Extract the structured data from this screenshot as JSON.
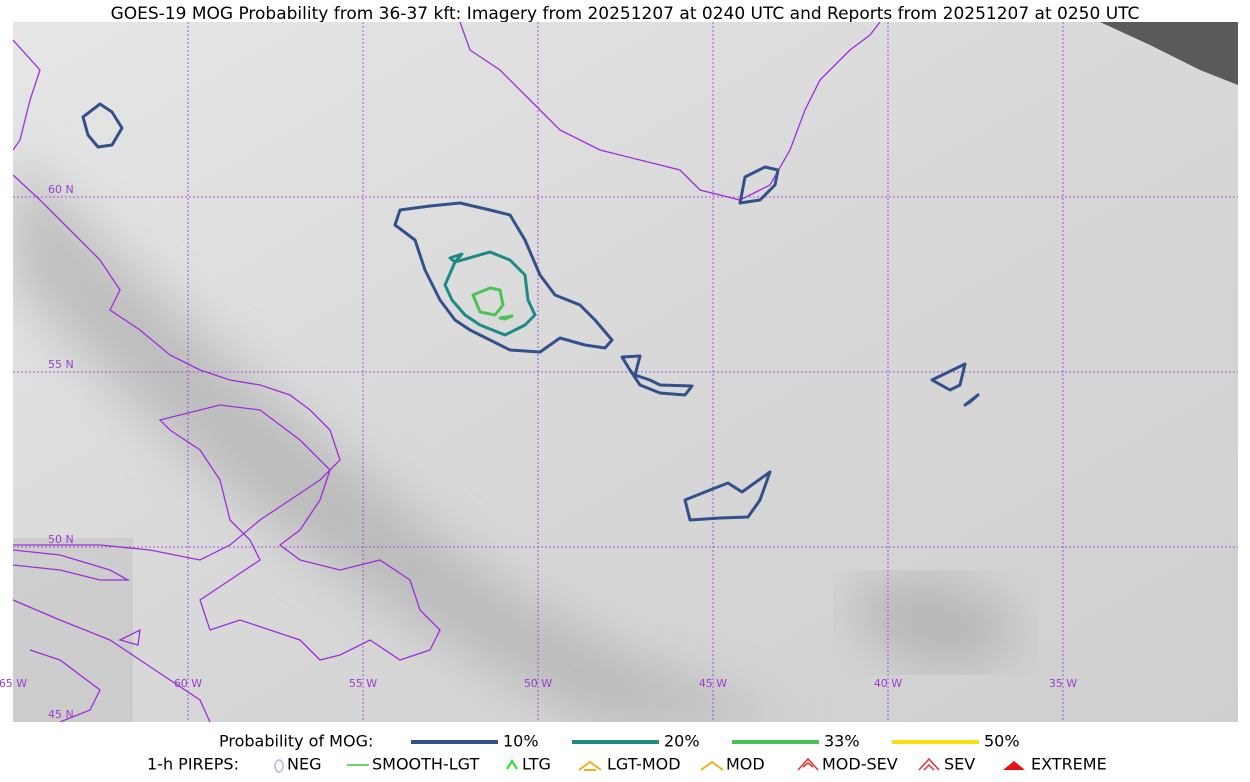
{
  "title": "GOES-19 MOG Probability from 36-37 kft: Imagery from 20251207 at 0240 UTC and Reports from 20251207 at 0250 UTC",
  "map": {
    "lat_labels": [
      "60 N",
      "55 N",
      "50 N",
      "45 N"
    ],
    "lon_labels": [
      "65 W",
      "60 W",
      "55 W",
      "50 W",
      "45 W",
      "40 W",
      "35 W"
    ]
  },
  "legend": {
    "probability": {
      "title": "Probability of MOG:",
      "items": [
        {
          "label": "10%",
          "color": "#34508a"
        },
        {
          "label": "20%",
          "color": "#1f8a84"
        },
        {
          "label": "33%",
          "color": "#4cc35a"
        },
        {
          "label": "50%",
          "color": "#f5e011"
        }
      ]
    },
    "pireps": {
      "title": "1-h PIREPS:",
      "items": [
        {
          "label": "NEG",
          "color": "#b8b4f0"
        },
        {
          "label": "SMOOTH-LGT",
          "color": "#33cc33"
        },
        {
          "label": "LTG",
          "color": "#22dd22"
        },
        {
          "label": "LGT-MOD",
          "color": "#f0b020"
        },
        {
          "label": "MOD",
          "color": "#f0b020"
        },
        {
          "label": "MOD-SEV",
          "color": "#e83030"
        },
        {
          "label": "SEV",
          "color": "#e83030"
        },
        {
          "label": "EXTREME",
          "color": "#e81010"
        }
      ]
    }
  }
}
